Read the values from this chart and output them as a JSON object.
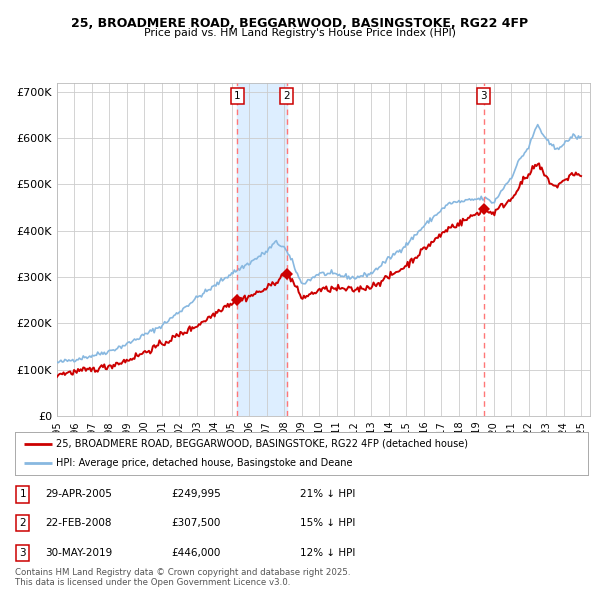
{
  "title": "25, BROADMERE ROAD, BEGGARWOOD, BASINGSTOKE, RG22 4FP",
  "subtitle": "Price paid vs. HM Land Registry's House Price Index (HPI)",
  "background_color": "#ffffff",
  "plot_bg_color": "#ffffff",
  "grid_color": "#cccccc",
  "hpi_color": "#88b8e0",
  "price_color": "#cc0000",
  "vline_color": "#ff7777",
  "shade_color": "#ddeeff",
  "ylim": [
    0,
    720000
  ],
  "yticks": [
    0,
    100000,
    200000,
    300000,
    400000,
    500000,
    600000,
    700000
  ],
  "ytick_labels": [
    "£0",
    "£100K",
    "£200K",
    "£300K",
    "£400K",
    "£500K",
    "£600K",
    "£700K"
  ],
  "sale1_date": 2005.33,
  "sale1_price": 249995,
  "sale2_date": 2008.14,
  "sale2_price": 307500,
  "sale3_date": 2019.42,
  "sale3_price": 446000,
  "footer": "Contains HM Land Registry data © Crown copyright and database right 2025.\nThis data is licensed under the Open Government Licence v3.0.",
  "legend_price": "25, BROADMERE ROAD, BEGGARWOOD, BASINGSTOKE, RG22 4FP (detached house)",
  "legend_hpi": "HPI: Average price, detached house, Basingstoke and Deane",
  "table_rows": [
    {
      "num": "1",
      "date": "29-APR-2005",
      "price": "£249,995",
      "hpi": "21% ↓ HPI"
    },
    {
      "num": "2",
      "date": "22-FEB-2008",
      "price": "£307,500",
      "hpi": "15% ↓ HPI"
    },
    {
      "num": "3",
      "date": "30-MAY-2019",
      "price": "£446,000",
      "hpi": "12% ↓ HPI"
    }
  ]
}
